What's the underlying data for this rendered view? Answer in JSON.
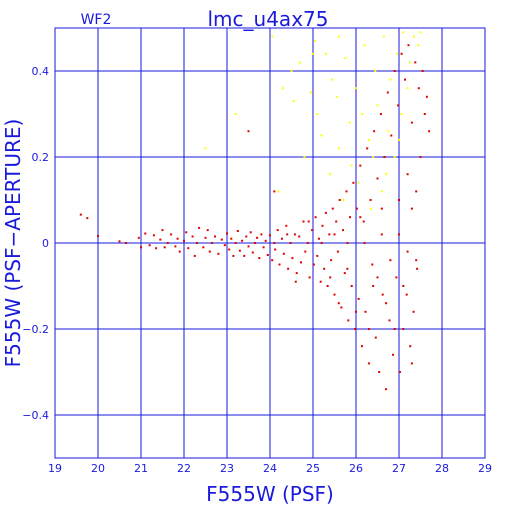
{
  "chart_data": {
    "type": "scatter",
    "title": "lmc_u4ax75",
    "chip_label": "WF2",
    "xlabel": "F555W (PSF)",
    "ylabel": "F555W (PSF−APERTURE)",
    "xlim": [
      19,
      29
    ],
    "ylim": [
      -0.5,
      0.5
    ],
    "xticks": [
      19,
      20,
      21,
      22,
      23,
      24,
      25,
      26,
      27,
      28,
      29
    ],
    "yticks": [
      -0.4,
      -0.2,
      0,
      0.2,
      0.4
    ],
    "ytick_labels": [
      "−0.4",
      "−0.2",
      "0",
      "0.2",
      "0.4"
    ],
    "grid": true,
    "colors": {
      "axis": "#1a1adc",
      "grid": "#1a1adc",
      "red_points": "#e00000",
      "yellow_points": "#ffff00"
    },
    "series": [
      {
        "color": "#e00000",
        "points": [
          [
            19.6,
            0.066
          ],
          [
            19.75,
            0.058
          ],
          [
            20.0,
            0.016
          ],
          [
            20.5,
            0.004
          ],
          [
            20.65,
            0.0
          ],
          [
            20.95,
            0.012
          ],
          [
            21.0,
            -0.01
          ],
          [
            21.1,
            0.022
          ],
          [
            21.2,
            -0.005
          ],
          [
            21.3,
            0.018
          ],
          [
            21.35,
            -0.012
          ],
          [
            21.45,
            0.008
          ],
          [
            21.5,
            0.03
          ],
          [
            21.55,
            -0.01
          ],
          [
            21.62,
            0.0
          ],
          [
            21.7,
            0.02
          ],
          [
            21.8,
            -0.008
          ],
          [
            21.85,
            0.01
          ],
          [
            21.9,
            -0.02
          ],
          [
            22.0,
            0.005
          ],
          [
            22.05,
            0.025
          ],
          [
            22.1,
            -0.012
          ],
          [
            22.2,
            0.015
          ],
          [
            22.25,
            -0.03
          ],
          [
            22.3,
            0.0
          ],
          [
            22.35,
            0.035
          ],
          [
            22.45,
            -0.01
          ],
          [
            22.5,
            0.012
          ],
          [
            22.55,
            0.03
          ],
          [
            22.6,
            -0.02
          ],
          [
            22.65,
            0.0
          ],
          [
            22.72,
            0.015
          ],
          [
            22.8,
            -0.025
          ],
          [
            22.88,
            0.008
          ],
          [
            22.95,
            -0.005
          ],
          [
            23.0,
            0.022
          ],
          [
            23.05,
            -0.015
          ],
          [
            23.1,
            0.01
          ],
          [
            23.15,
            -0.03
          ],
          [
            23.2,
            0.0
          ],
          [
            23.25,
            0.028
          ],
          [
            23.3,
            -0.018
          ],
          [
            23.35,
            0.005
          ],
          [
            23.4,
            -0.03
          ],
          [
            23.45,
            0.015
          ],
          [
            23.5,
            -0.008
          ],
          [
            23.55,
            0.025
          ],
          [
            23.6,
            -0.022
          ],
          [
            23.65,
            0.0
          ],
          [
            23.7,
            0.012
          ],
          [
            23.75,
            -0.035
          ],
          [
            23.8,
            0.02
          ],
          [
            23.85,
            -0.01
          ],
          [
            23.9,
            0.005
          ],
          [
            23.95,
            -0.028
          ],
          [
            24.0,
            0.018
          ],
          [
            24.05,
            -0.04
          ],
          [
            24.1,
            0.0
          ],
          [
            24.12,
            -0.015
          ],
          [
            24.18,
            0.03
          ],
          [
            24.22,
            -0.05
          ],
          [
            24.28,
            0.01
          ],
          [
            24.32,
            -0.025
          ],
          [
            24.38,
            0.04
          ],
          [
            24.42,
            -0.06
          ],
          [
            24.48,
            0.0
          ],
          [
            24.52,
            -0.035
          ],
          [
            24.58,
            0.02
          ],
          [
            24.62,
            -0.07
          ],
          [
            24.68,
            0.015
          ],
          [
            24.72,
            -0.045
          ],
          [
            24.78,
            0.05
          ],
          [
            24.82,
            -0.02
          ],
          [
            24.88,
            0.0
          ],
          [
            24.92,
            -0.08
          ],
          [
            24.98,
            0.03
          ],
          [
            25.02,
            -0.05
          ],
          [
            25.06,
            0.06
          ],
          [
            25.1,
            -0.03
          ],
          [
            25.14,
            0.01
          ],
          [
            25.18,
            -0.09
          ],
          [
            25.22,
            0.04
          ],
          [
            25.26,
            -0.06
          ],
          [
            25.3,
            0.07
          ],
          [
            25.34,
            -0.1
          ],
          [
            25.38,
            0.02
          ],
          [
            25.42,
            -0.04
          ],
          [
            25.46,
            0.08
          ],
          [
            25.5,
            -0.12
          ],
          [
            25.54,
            0.05
          ],
          [
            25.58,
            -0.02
          ],
          [
            25.62,
            0.1
          ],
          [
            25.66,
            -0.15
          ],
          [
            25.7,
            0.03
          ],
          [
            25.74,
            -0.07
          ],
          [
            25.78,
            0.12
          ],
          [
            25.82,
            -0.18
          ],
          [
            25.86,
            0.06
          ],
          [
            25.9,
            -0.1
          ],
          [
            25.94,
            0.14
          ],
          [
            25.98,
            -0.2
          ],
          [
            26.02,
            0.08
          ],
          [
            26.06,
            -0.13
          ],
          [
            26.1,
            0.18
          ],
          [
            26.14,
            -0.24
          ],
          [
            26.18,
            0.05
          ],
          [
            26.22,
            -0.16
          ],
          [
            26.26,
            0.22
          ],
          [
            26.3,
            -0.28
          ],
          [
            26.34,
            0.1
          ],
          [
            26.38,
            -0.05
          ],
          [
            26.42,
            0.26
          ],
          [
            26.46,
            -0.22
          ],
          [
            26.5,
            0.15
          ],
          [
            26.54,
            -0.3
          ],
          [
            26.58,
            0.3
          ],
          [
            26.62,
            -0.12
          ],
          [
            26.66,
            0.2
          ],
          [
            26.7,
            -0.34
          ],
          [
            26.74,
            0.35
          ],
          [
            26.78,
            -0.18
          ],
          [
            26.82,
            0.25
          ],
          [
            26.86,
            -0.26
          ],
          [
            26.9,
            0.4
          ],
          [
            26.94,
            -0.08
          ],
          [
            26.98,
            0.32
          ],
          [
            27.02,
            -0.3
          ],
          [
            27.06,
            0.44
          ],
          [
            27.1,
            -0.2
          ],
          [
            27.14,
            0.38
          ],
          [
            27.18,
            -0.12
          ],
          [
            27.22,
            0.46
          ],
          [
            27.26,
            -0.24
          ],
          [
            27.3,
            0.28
          ],
          [
            27.34,
            -0.16
          ],
          [
            27.38,
            0.42
          ],
          [
            27.42,
            -0.06
          ],
          [
            27.46,
            0.36
          ],
          [
            27.5,
            0.2
          ],
          [
            27.55,
            0.4
          ],
          [
            27.6,
            0.3
          ],
          [
            27.65,
            0.34
          ],
          [
            27.7,
            0.26
          ],
          [
            26.1,
            0.06
          ],
          [
            26.4,
            -0.1
          ],
          [
            26.6,
            0.02
          ],
          [
            26.8,
            -0.04
          ],
          [
            27.0,
            0.1
          ],
          [
            27.2,
            -0.02
          ],
          [
            27.4,
            0.12
          ],
          [
            25.4,
            -0.08
          ],
          [
            25.6,
            -0.14
          ],
          [
            25.8,
            -0.06
          ],
          [
            26.0,
            -0.16
          ],
          [
            26.3,
            -0.2
          ],
          [
            26.5,
            -0.08
          ],
          [
            26.7,
            -0.14
          ],
          [
            26.9,
            -0.2
          ],
          [
            27.1,
            -0.1
          ],
          [
            27.3,
            -0.28
          ],
          [
            24.6,
            -0.09
          ],
          [
            24.4,
            0.02
          ],
          [
            24.9,
            0.05
          ],
          [
            25.2,
            0.0
          ],
          [
            25.5,
            0.02
          ],
          [
            25.8,
            0.0
          ],
          [
            26.2,
            0.0
          ],
          [
            26.6,
            0.08
          ],
          [
            27.0,
            0.02
          ],
          [
            27.2,
            0.16
          ],
          [
            27.3,
            0.08
          ],
          [
            27.4,
            -0.04
          ],
          [
            23.5,
            0.26
          ],
          [
            24.1,
            0.12
          ]
        ]
      },
      {
        "color": "#ffff00",
        "points": [
          [
            24.05,
            0.48
          ],
          [
            24.2,
            0.12
          ],
          [
            24.3,
            0.36
          ],
          [
            24.5,
            0.4
          ],
          [
            24.55,
            0.33
          ],
          [
            24.7,
            0.42
          ],
          [
            24.8,
            0.2
          ],
          [
            24.95,
            0.35
          ],
          [
            25.05,
            0.47
          ],
          [
            25.1,
            0.3
          ],
          [
            25.2,
            0.25
          ],
          [
            25.3,
            0.44
          ],
          [
            25.4,
            0.16
          ],
          [
            25.45,
            0.38
          ],
          [
            25.55,
            0.34
          ],
          [
            25.6,
            0.22
          ],
          [
            25.7,
            0.1
          ],
          [
            25.75,
            0.43
          ],
          [
            25.85,
            0.28
          ],
          [
            25.9,
            0.18
          ],
          [
            26.0,
            0.36
          ],
          [
            26.05,
            0.14
          ],
          [
            26.15,
            0.3
          ],
          [
            26.2,
            0.46
          ],
          [
            26.3,
            0.24
          ],
          [
            26.35,
            0.08
          ],
          [
            26.45,
            0.4
          ],
          [
            26.5,
            0.32
          ],
          [
            26.6,
            0.12
          ],
          [
            26.65,
            0.48
          ],
          [
            26.75,
            0.26
          ],
          [
            26.8,
            0.38
          ],
          [
            26.9,
            0.2
          ],
          [
            26.95,
            0.44
          ],
          [
            27.05,
            0.3
          ],
          [
            27.1,
            0.49
          ],
          [
            27.2,
            0.36
          ],
          [
            27.25,
            0.42
          ],
          [
            27.35,
            0.48
          ],
          [
            27.45,
            0.46
          ],
          [
            27.5,
            0.49
          ],
          [
            22.5,
            0.22
          ],
          [
            23.2,
            0.3
          ],
          [
            25.0,
            0.44
          ],
          [
            25.6,
            0.48
          ],
          [
            26.4,
            0.2
          ],
          [
            26.7,
            0.16
          ],
          [
            27.0,
            0.24
          ]
        ]
      }
    ]
  }
}
